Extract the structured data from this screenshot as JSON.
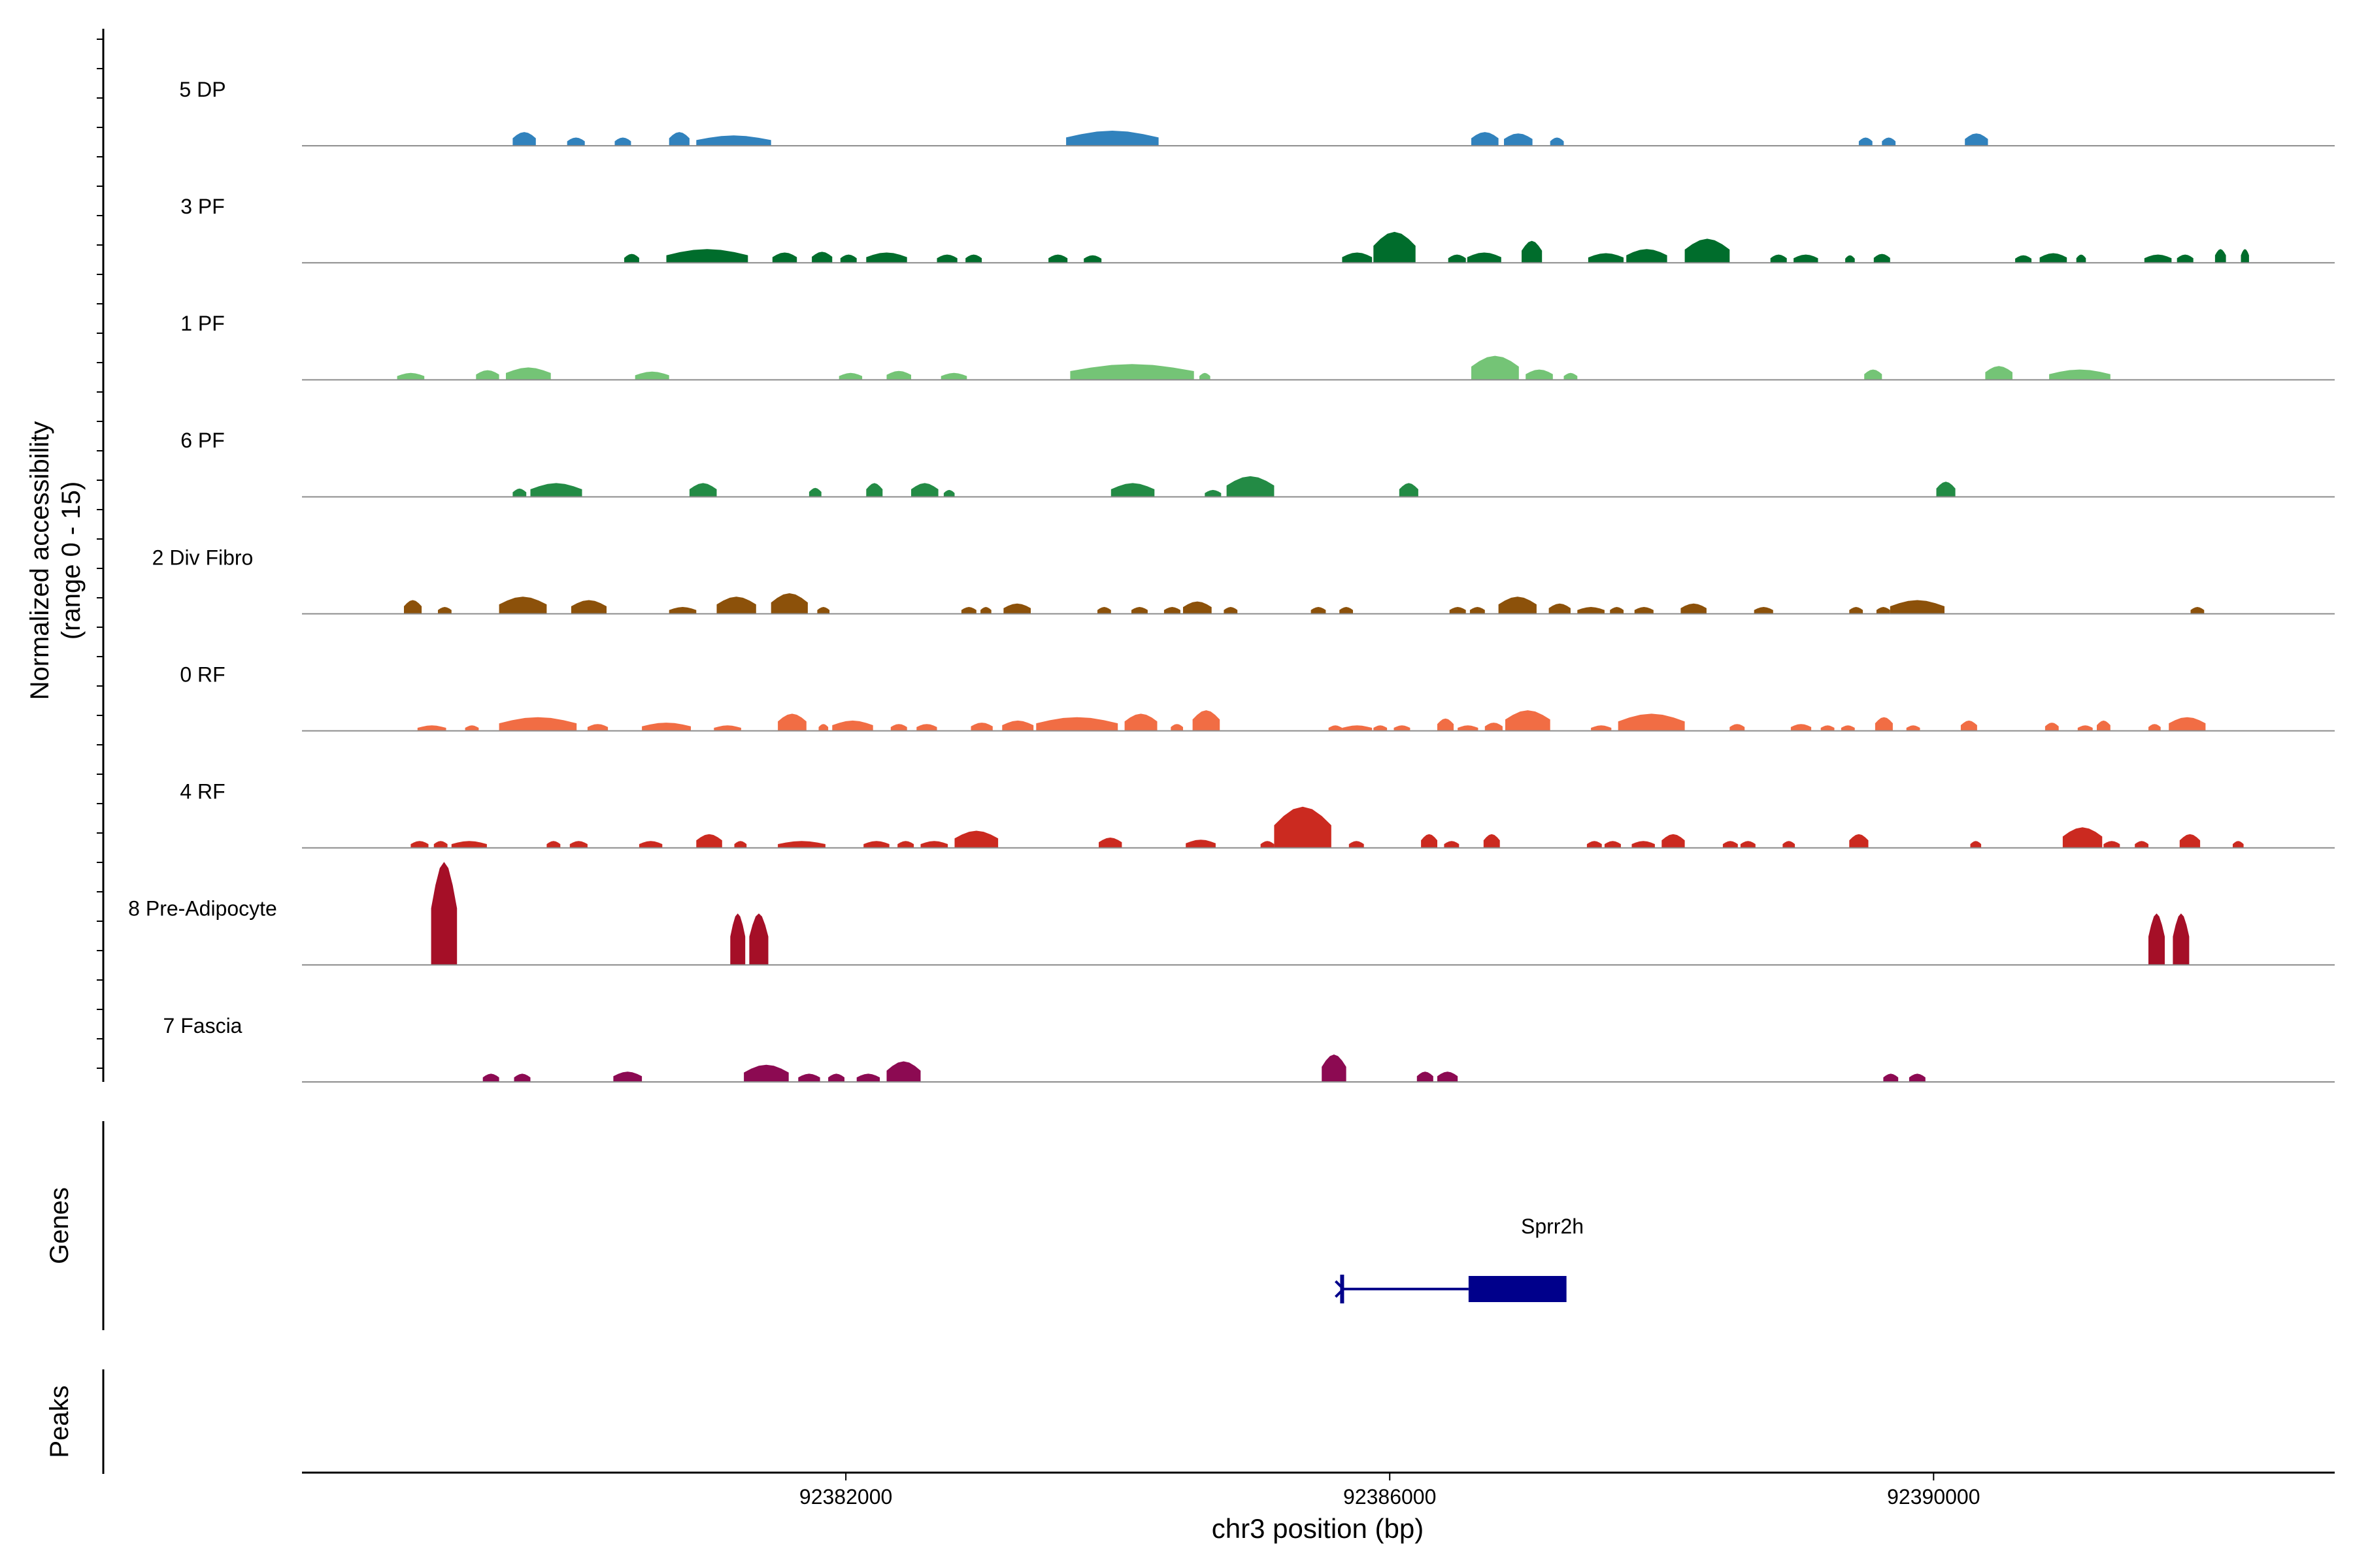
{
  "chart_data": {
    "type": "area",
    "title": "",
    "ylabel": "Normalized accessibility",
    "ylabel_range": "(range 0 - 15)",
    "ylim": [
      0,
      15
    ],
    "xlabel": "chr3 position (bp)",
    "xlim": [
      92378000,
      92392950
    ],
    "xticks": [
      92382000,
      92386000,
      92390000
    ],
    "xtick_labels": [
      "92382000",
      "92386000",
      "92390000"
    ],
    "track_labels": {
      "genes": "Genes",
      "peaks": "Peaks"
    },
    "series": [
      {
        "name": "5 DP",
        "color": "#3182bd",
        "peaks": [
          [
            92379550,
            92379720,
            2.0
          ],
          [
            92379950,
            92380080,
            1.2
          ],
          [
            92380300,
            92380420,
            1.2
          ],
          [
            92380700,
            92380850,
            2.0
          ],
          [
            92380900,
            92381450,
            1.5
          ],
          [
            92383620,
            92384300,
            2.2
          ],
          [
            92386600,
            92386800,
            2.0
          ],
          [
            92386840,
            92387050,
            1.8
          ],
          [
            92387180,
            92387280,
            1.2
          ],
          [
            92389450,
            92389550,
            1.2
          ],
          [
            92389620,
            92389720,
            1.2
          ],
          [
            92390230,
            92390400,
            1.8
          ]
        ]
      },
      {
        "name": "3 PF",
        "color": "#006d2c",
        "peaks": [
          [
            92380370,
            92380480,
            1.3
          ],
          [
            92380680,
            92381280,
            2.0
          ],
          [
            92381460,
            92381640,
            1.5
          ],
          [
            92381750,
            92381900,
            1.6
          ],
          [
            92381960,
            92382080,
            1.2
          ],
          [
            92382150,
            92382450,
            1.5
          ],
          [
            92382670,
            92382820,
            1.2
          ],
          [
            92382880,
            92383000,
            1.2
          ],
          [
            92383490,
            92383630,
            1.2
          ],
          [
            92383750,
            92383880,
            1.1
          ],
          [
            92385650,
            92385870,
            1.5
          ],
          [
            92385880,
            92386190,
            4.5
          ],
          [
            92386430,
            92386560,
            1.2
          ],
          [
            92386570,
            92386820,
            1.5
          ],
          [
            92386970,
            92387120,
            3.2
          ],
          [
            92387460,
            92387720,
            1.4
          ],
          [
            92387740,
            92388040,
            2.0
          ],
          [
            92388170,
            92388500,
            3.5
          ],
          [
            92388800,
            92388920,
            1.2
          ],
          [
            92388970,
            92389150,
            1.2
          ],
          [
            92389350,
            92389420,
            1.1
          ],
          [
            92389560,
            92389680,
            1.3
          ],
          [
            92390600,
            92390720,
            1.1
          ],
          [
            92390780,
            92390980,
            1.4
          ],
          [
            92391050,
            92391120,
            1.2
          ],
          [
            92391550,
            92391750,
            1.2
          ],
          [
            92391790,
            92391910,
            1.2
          ],
          [
            92392070,
            92392150,
            2.0
          ],
          [
            92392260,
            92392320,
            2.0
          ]
        ]
      },
      {
        "name": "1 PF",
        "color": "#74c476",
        "peaks": [
          [
            92378700,
            92378900,
            1.0
          ],
          [
            92379280,
            92379450,
            1.4
          ],
          [
            92379500,
            92379830,
            1.8
          ],
          [
            92380450,
            92380700,
            1.2
          ],
          [
            92381950,
            92382120,
            1.0
          ],
          [
            92382300,
            92382480,
            1.3
          ],
          [
            92382700,
            92382890,
            1.0
          ],
          [
            92383650,
            92384560,
            2.3
          ],
          [
            92384600,
            92384680,
            1.0
          ],
          [
            92386600,
            92386950,
            3.5
          ],
          [
            92387000,
            92387200,
            1.5
          ],
          [
            92387280,
            92387380,
            1.0
          ],
          [
            92389490,
            92389620,
            1.5
          ],
          [
            92390380,
            92390580,
            2.0
          ],
          [
            92390850,
            92391300,
            1.5
          ]
        ]
      },
      {
        "name": "6 PF",
        "color": "#238b45",
        "peaks": [
          [
            92379550,
            92379650,
            1.2
          ],
          [
            92379680,
            92380060,
            2.0
          ],
          [
            92380850,
            92381050,
            2.0
          ],
          [
            92381730,
            92381820,
            1.3
          ],
          [
            92382150,
            92382270,
            2.0
          ],
          [
            92382480,
            92382680,
            2.0
          ],
          [
            92382720,
            92382800,
            1.0
          ],
          [
            92383950,
            92384270,
            2.0
          ],
          [
            92384640,
            92384760,
            1.0
          ],
          [
            92384800,
            92385150,
            3.0
          ],
          [
            92386070,
            92386210,
            2.0
          ],
          [
            92390020,
            92390160,
            2.2
          ]
        ]
      },
      {
        "name": "2 Div Fibro",
        "color": "#8c510a",
        "peaks": [
          [
            92378750,
            92378880,
            2.0
          ],
          [
            92379000,
            92379100,
            1.0
          ],
          [
            92379450,
            92379800,
            2.5
          ],
          [
            92379980,
            92380240,
            2.0
          ],
          [
            92380700,
            92380900,
            1.0
          ],
          [
            92381050,
            92381340,
            2.5
          ],
          [
            92381450,
            92381720,
            3.0
          ],
          [
            92381790,
            92381880,
            1.0
          ],
          [
            92382850,
            92382960,
            1.0
          ],
          [
            92382990,
            92383070,
            1.0
          ],
          [
            92383160,
            92383360,
            1.5
          ],
          [
            92383850,
            92383950,
            1.0
          ],
          [
            92384100,
            92384220,
            1.0
          ],
          [
            92384340,
            92384460,
            1.0
          ],
          [
            92384480,
            92384690,
            1.8
          ],
          [
            92384780,
            92384880,
            1.0
          ],
          [
            92385420,
            92385530,
            1.0
          ],
          [
            92385630,
            92385730,
            1.0
          ],
          [
            92386440,
            92386560,
            1.0
          ],
          [
            92386590,
            92386700,
            1.0
          ],
          [
            92386800,
            92387080,
            2.5
          ],
          [
            92387170,
            92387330,
            1.5
          ],
          [
            92387380,
            92387580,
            1.0
          ],
          [
            92387620,
            92387720,
            1.0
          ],
          [
            92387800,
            92387940,
            1.0
          ],
          [
            92388140,
            92388330,
            1.5
          ],
          [
            92388680,
            92388820,
            1.0
          ],
          [
            92389380,
            92389480,
            1.0
          ],
          [
            92389580,
            92389680,
            1.0
          ],
          [
            92389680,
            92390080,
            2.0
          ],
          [
            92391890,
            92391990,
            1.0
          ]
        ]
      },
      {
        "name": "0 RF",
        "color": "#f16d44",
        "peaks": [
          [
            92378850,
            92379060,
            0.8
          ],
          [
            92379200,
            92379300,
            0.8
          ],
          [
            92379450,
            92380020,
            2.0
          ],
          [
            92380100,
            92380250,
            1.0
          ],
          [
            92380500,
            92380860,
            1.2
          ],
          [
            92381030,
            92381230,
            0.8
          ],
          [
            92381500,
            92381710,
            2.5
          ],
          [
            92381800,
            92381870,
            1.0
          ],
          [
            92381900,
            92382200,
            1.5
          ],
          [
            92382330,
            92382450,
            1.0
          ],
          [
            92382520,
            92382670,
            1.0
          ],
          [
            92382920,
            92383080,
            1.2
          ],
          [
            92383150,
            92383380,
            1.5
          ],
          [
            92383400,
            92384000,
            2.0
          ],
          [
            92384050,
            92384290,
            2.5
          ],
          [
            92384390,
            92384480,
            1.0
          ],
          [
            92384550,
            92384750,
            3.0
          ],
          [
            92385550,
            92385650,
            0.8
          ],
          [
            92385650,
            92385870,
            0.8
          ],
          [
            92385880,
            92385980,
            0.8
          ],
          [
            92386030,
            92386150,
            0.8
          ],
          [
            92386350,
            92386470,
            1.8
          ],
          [
            92386500,
            92386650,
            0.8
          ],
          [
            92386700,
            92386830,
            1.2
          ],
          [
            92386850,
            92387180,
            3.0
          ],
          [
            92387480,
            92387630,
            0.8
          ],
          [
            92387680,
            92388170,
            2.5
          ],
          [
            92388500,
            92388610,
            1.0
          ],
          [
            92388950,
            92389100,
            1.0
          ],
          [
            92389170,
            92389270,
            0.8
          ],
          [
            92389320,
            92389420,
            0.8
          ],
          [
            92389570,
            92389700,
            2.0
          ],
          [
            92389800,
            92389900,
            0.8
          ],
          [
            92390200,
            92390320,
            1.5
          ],
          [
            92390820,
            92390920,
            1.2
          ],
          [
            92391060,
            92391170,
            0.8
          ],
          [
            92391200,
            92391300,
            1.5
          ],
          [
            92391580,
            92391670,
            1.0
          ],
          [
            92391730,
            92392000,
            2.0
          ]
        ]
      },
      {
        "name": "4 RF",
        "color": "#cb2a20",
        "peaks": [
          [
            92378800,
            92378930,
            1.0
          ],
          [
            92378970,
            92379070,
            1.0
          ],
          [
            92379100,
            92379360,
            1.0
          ],
          [
            92379800,
            92379900,
            1.0
          ],
          [
            92379970,
            92380100,
            1.0
          ],
          [
            92380480,
            92380650,
            1.0
          ],
          [
            92380900,
            92381090,
            2.0
          ],
          [
            92381180,
            92381270,
            1.0
          ],
          [
            92381500,
            92381850,
            1.0
          ],
          [
            92382130,
            92382320,
            1.0
          ],
          [
            92382380,
            92382500,
            1.0
          ],
          [
            92382550,
            92382750,
            1.0
          ],
          [
            92382800,
            92383120,
            2.5
          ],
          [
            92383860,
            92384030,
            1.5
          ],
          [
            92384500,
            92384720,
            1.2
          ],
          [
            92385050,
            92385150,
            1.0
          ],
          [
            92385150,
            92385570,
            6.0
          ],
          [
            92385700,
            92385810,
            1.0
          ],
          [
            92386230,
            92386350,
            2.0
          ],
          [
            92386400,
            92386510,
            1.0
          ],
          [
            92386690,
            92386810,
            2.0
          ],
          [
            92387450,
            92387560,
            1.0
          ],
          [
            92387580,
            92387700,
            1.0
          ],
          [
            92387780,
            92387950,
            1.0
          ],
          [
            92388000,
            92388170,
            2.0
          ],
          [
            92388450,
            92388560,
            1.0
          ],
          [
            92388580,
            92388690,
            1.0
          ],
          [
            92388890,
            92388980,
            1.0
          ],
          [
            92389380,
            92389520,
            2.0
          ],
          [
            92390270,
            92390350,
            1.0
          ],
          [
            92390950,
            92391240,
            3.0
          ],
          [
            92391250,
            92391370,
            1.0
          ],
          [
            92391480,
            92391580,
            1.0
          ],
          [
            92391810,
            92391960,
            2.0
          ],
          [
            92392200,
            92392280,
            1.0
          ]
        ]
      },
      {
        "name": "8 Pre-Adipocyte",
        "color": "#a50f27",
        "peaks": [
          [
            92378950,
            92379140,
            15.0
          ],
          [
            92381150,
            92381260,
            7.5
          ],
          [
            92381290,
            92381430,
            7.5
          ],
          [
            92391580,
            92391700,
            7.5
          ],
          [
            92391760,
            92391880,
            7.5
          ]
        ]
      },
      {
        "name": "7 Fascia",
        "color": "#8c0a52",
        "peaks": [
          [
            92379330,
            92379450,
            1.2
          ],
          [
            92379560,
            92379680,
            1.2
          ],
          [
            92380290,
            92380500,
            1.5
          ],
          [
            92381250,
            92381580,
            2.5
          ],
          [
            92381650,
            92381810,
            1.2
          ],
          [
            92381870,
            92381990,
            1.2
          ],
          [
            92382080,
            92382250,
            1.2
          ],
          [
            92382300,
            92382550,
            3.0
          ],
          [
            92385500,
            92385680,
            4.0
          ],
          [
            92386200,
            92386320,
            1.5
          ],
          [
            92386350,
            92386500,
            1.5
          ],
          [
            92389630,
            92389740,
            1.2
          ],
          [
            92389820,
            92389940,
            1.2
          ]
        ]
      }
    ],
    "gene": {
      "name": "Sprr2h",
      "start": 92385650,
      "end": 92387300,
      "cds_start": 92386580,
      "cds_end": 92387300,
      "color": "#00008b"
    }
  }
}
